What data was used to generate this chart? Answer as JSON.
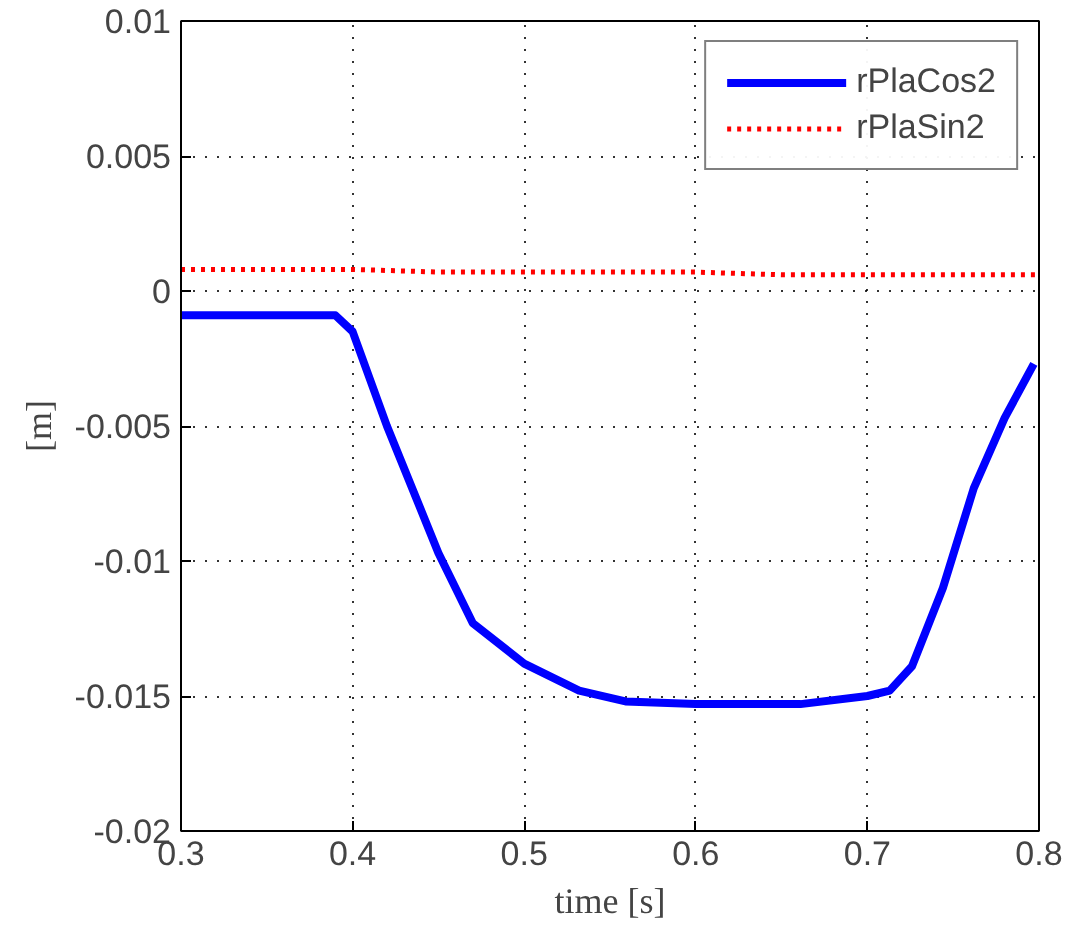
{
  "chart_data": {
    "type": "line",
    "xlabel": "time [s]",
    "ylabel": "[m]",
    "xlim": [
      0.3,
      0.8
    ],
    "xticks": [
      0.3,
      0.4,
      0.5,
      0.6,
      0.7,
      0.8
    ],
    "ylim": [
      -0.02,
      0.01
    ],
    "yticks": [
      -0.02,
      -0.015,
      -0.01,
      -0.005,
      0,
      0.005,
      0.01
    ],
    "grid": true,
    "legend": "top right",
    "series": [
      {
        "name": "rPlaCos2",
        "color": "#0000ff",
        "line_style": "solid",
        "x": [
          0.3,
          0.35,
          0.39,
          0.4,
          0.42,
          0.45,
          0.47,
          0.5,
          0.532,
          0.559,
          0.6,
          0.661,
          0.7,
          0.713,
          0.726,
          0.744,
          0.762,
          0.78,
          0.797
        ],
        "values": [
          -0.0009,
          -0.0009,
          -0.0009,
          -0.0015,
          -0.005,
          -0.0097,
          -0.0123,
          -0.0138,
          -0.0148,
          -0.0152,
          -0.0153,
          -0.0153,
          -0.015,
          -0.0148,
          -0.0139,
          -0.011,
          -0.0073,
          -0.0047,
          -0.0027
        ]
      },
      {
        "name": "rPlaSin2",
        "color": "#ff0000",
        "line_style": "dotted",
        "x": [
          0.3,
          0.35,
          0.4,
          0.45,
          0.5,
          0.55,
          0.6,
          0.65,
          0.7,
          0.75,
          0.8
        ],
        "values": [
          0.0008,
          0.0008,
          0.0008,
          0.0007,
          0.0007,
          0.0007,
          0.0007,
          0.0006,
          0.0006,
          0.0006,
          0.0006
        ]
      }
    ]
  }
}
